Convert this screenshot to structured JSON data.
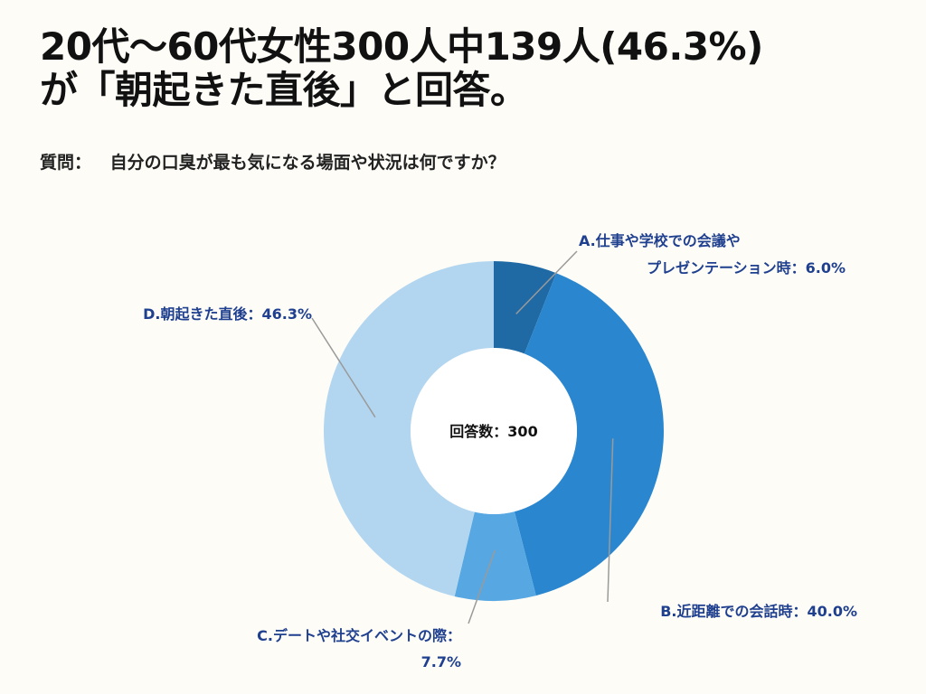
{
  "title": {
    "line1": "20代〜60代女性300人中139人(46.3%)",
    "line2": "が「朝起きた直後」と回答。"
  },
  "question": {
    "prefix": "質問：",
    "text": "自分の口臭が最も気になる場面や状況は何ですか？"
  },
  "chart_data": {
    "type": "pie",
    "donut": true,
    "center_label": "回答数：300",
    "unit": "%",
    "slices": [
      {
        "label": "A.仕事や学校での会議やプレゼンテーション時",
        "value": 6.0,
        "color": "#1f6aa5"
      },
      {
        "label": "B.近距離での会話時",
        "value": 40.0,
        "color": "#2a87cf"
      },
      {
        "label": "C.デートや社交イベントの際",
        "value": 7.7,
        "color": "#57a8e2"
      },
      {
        "label": "D.朝起きた直後",
        "value": 46.3,
        "color": "#b3d6f0"
      }
    ],
    "label_texts": {
      "a_line1": "A.仕事や学校での会議や",
      "a_line2": "プレゼンテーション時：6.0%",
      "b": "B.近距離での会話時：40.0%",
      "c_line1": "C.デートや社交イベントの際：",
      "c_line2": "7.7%",
      "d": "D.朝起きた直後：46.3%"
    }
  }
}
